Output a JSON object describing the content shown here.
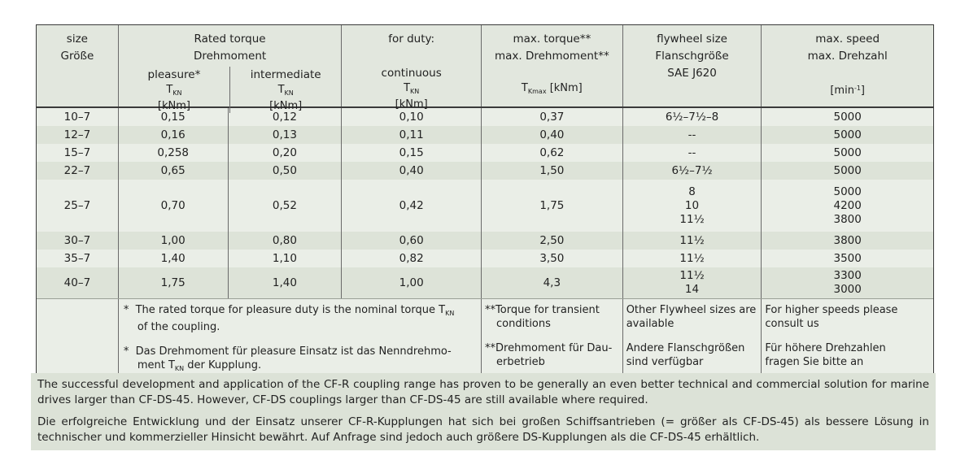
{
  "accent_colors": {
    "row_light": "#eaeee7",
    "row_dark": "#dde3d8",
    "header_bg": "#e2e7de",
    "paragraph_bg": "#dce2d7",
    "border_dark": "#3a3a3a",
    "border_inner": "#6a6a6a"
  },
  "table": {
    "header": {
      "size_lines": "size\nGröße",
      "rated_title": "Rated torque\nDrehmoment",
      "pleasure": "pleasure*",
      "intermediate": "intermediate",
      "tkn_html": "T<sub>KN</sub>",
      "knm": "[kNm]",
      "duty_title": "for duty:",
      "continuous": "continuous",
      "max_torque_title": "max. torque**\nmax. Drehmoment**",
      "tkmax_html": "T<sub>Kmax</sub> [kNm]",
      "flywheel_title": "flywheel size\nFlanschgröße\nSAE J620",
      "speed_title": "max. speed\nmax. Drehzahl",
      "min_unit_html": "[min<sup>-1</sup>]"
    },
    "rows": [
      {
        "cells": [
          "10–7",
          "0,15",
          "0,12",
          "0,10",
          "0,37",
          "6½–7½–8",
          "5000"
        ]
      },
      {
        "cells": [
          "12–7",
          "0,16",
          "0,13",
          "0,11",
          "0,40",
          "--",
          "5000"
        ]
      },
      {
        "cells": [
          "15–7",
          "0,258",
          "0,20",
          "0,15",
          "0,62",
          "--",
          "5000"
        ]
      },
      {
        "cells": [
          "22–7",
          "0,65",
          "0,50",
          "0,40",
          "1,50",
          "6½–7½",
          "5000"
        ]
      },
      {
        "cells": [
          "25–7",
          "0,70",
          "0,52",
          "0,42",
          "1,75",
          "8\n10\n11½",
          "5000\n4200\n3800"
        ]
      },
      {
        "cells": [
          "30–7",
          "1,00",
          "0,80",
          "0,60",
          "2,50",
          "11½",
          "3800"
        ]
      },
      {
        "cells": [
          "35–7",
          "1,40",
          "1,10",
          "0,82",
          "3,50",
          "11½",
          "3500"
        ]
      },
      {
        "cells": [
          "40–7",
          "1,75",
          "1,40",
          "1,00",
          "4,3",
          "11½\n14",
          "3300\n3000"
        ]
      }
    ],
    "footnotes": {
      "rated_en_html": "*  The rated torque for pleasure duty is the nominal torque T<sub>KN</sub>\nof the coupling.",
      "rated_de_html": "*  Das Drehmoment für pleasure Einsatz ist das Nenndrehmo-\nment T<sub>KN</sub> der Kupplung.",
      "max_torque_en": "**Torque for transient\nconditions",
      "max_torque_de": "**Drehmoment für Dau-\nerbetrieb",
      "flywheel_en": "Other Flywheel sizes are\navailable",
      "flywheel_de": "Andere Flanschgrößen\nsind verfügbar",
      "speed_en": "For higher speeds please\nconsult us",
      "speed_de": "Für höhere Drehzahlen\nfragen Sie bitte an"
    }
  },
  "paragraphs": {
    "en": "The successful development and application of the CF-R coupling range has proven to be generally an even better technical and commercial solution for marine drives larger than CF-DS-45. However, CF-DS couplings larger than CF-DS-45 are still available where required.",
    "de": "Die erfolgreiche Entwicklung und der Einsatz unserer CF-R-Kupplungen hat sich bei großen Schiffsantrieben (= größer als CF-DS-45) als bessere Lösung in technischer und kommerzieller Hinsicht bewährt. Auf Anfrage sind jedoch auch größere DS-Kupplungen als die CF-DS-45 erhältlich."
  }
}
